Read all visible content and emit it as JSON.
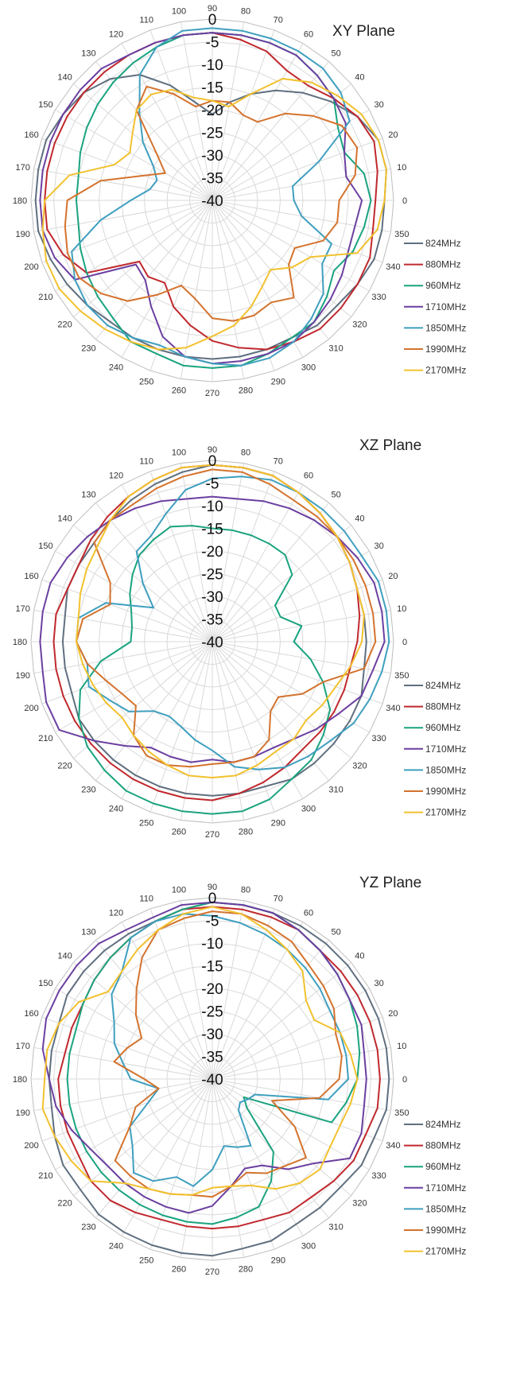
{
  "chart_data": [
    {
      "type": "polar-line",
      "title": "XY Plane",
      "r_ticks": [
        "0",
        "-5",
        "-10",
        "-15",
        "-20",
        "-25",
        "-30",
        "-35",
        "-40"
      ],
      "r_range": [
        -40,
        0
      ],
      "angle_ticks": [
        "0",
        "10",
        "20",
        "30",
        "40",
        "50",
        "60",
        "70",
        "80",
        "90",
        "100",
        "110",
        "120",
        "130",
        "140",
        "150",
        "160",
        "170",
        "180",
        "190",
        "200",
        "210",
        "220",
        "230",
        "240",
        "250",
        "260",
        "270",
        "280",
        "290",
        "300",
        "310",
        "320",
        "330",
        "340",
        "350"
      ],
      "angles": [
        0,
        10,
        20,
        30,
        40,
        50,
        60,
        70,
        80,
        90,
        100,
        110,
        120,
        130,
        140,
        150,
        160,
        170,
        180,
        190,
        200,
        210,
        220,
        230,
        240,
        250,
        260,
        270,
        280,
        290,
        300,
        310,
        320,
        330,
        340,
        350
      ],
      "legend_position": "right",
      "grid": true,
      "series": [
        {
          "name": "824MHz",
          "color": "#5f6f7f",
          "values": [
            -2,
            -1,
            -1,
            -3,
            -6,
            -9,
            -12,
            -15,
            -18,
            -21,
            -18,
            -13,
            -8,
            -5,
            -3,
            -2,
            -1,
            -1,
            -1,
            -1,
            -2,
            -3,
            -4,
            -5,
            -5,
            -5,
            -5,
            -5,
            -5,
            -5,
            -5,
            -4,
            -4,
            -3,
            -2,
            -2
          ]
        },
        {
          "name": "880MHz",
          "color": "#c0282d",
          "values": [
            -4,
            -3,
            -2,
            -3,
            -5,
            -7,
            -7,
            -5,
            -4,
            -3,
            -3,
            -3,
            -3,
            -3,
            -3,
            -3,
            -3,
            -3,
            -3,
            -3,
            -5,
            -8,
            -19,
            -18,
            -19,
            -15,
            -12,
            -9,
            -7,
            -5,
            -4,
            -3,
            -3,
            -3,
            -3,
            -4
          ]
        },
        {
          "name": "960MHz",
          "color": "#1aa37f",
          "values": [
            -5,
            -6,
            -9,
            -8,
            -5,
            -4,
            -3,
            -3,
            -3,
            -3,
            -3,
            -4,
            -5,
            -6,
            -7,
            -8,
            -9,
            -10,
            -10,
            -10,
            -9,
            -8,
            -7,
            -6,
            -4,
            -4,
            -3,
            -3,
            -3,
            -4,
            -5,
            -5,
            -7,
            -9,
            -7,
            -6
          ]
        },
        {
          "name": "1710MHz",
          "color": "#6b3fa0",
          "values": [
            -7,
            -10,
            -9,
            -6,
            -5,
            -4,
            -3,
            -3,
            -3,
            -3,
            -3,
            -3,
            -3,
            -2,
            -2,
            -2,
            -2,
            -2,
            -2,
            -2,
            -3,
            -5,
            -18,
            -17,
            -13,
            -8,
            -5,
            -4,
            -4,
            -4,
            -4,
            -5,
            -6,
            -7,
            -8,
            -8
          ]
        },
        {
          "name": "1850MHz",
          "color": "#3f9fbf",
          "values": [
            -22,
            -22,
            -15,
            -5,
            -3,
            -2,
            -2,
            -2,
            -2,
            -2,
            -2,
            -4,
            -8,
            -15,
            -20,
            -25,
            -27,
            -26,
            -22,
            -15,
            -7,
            -5,
            -4,
            -4,
            -5,
            -6,
            -5,
            -4,
            -3,
            -3,
            -4,
            -6,
            -8,
            -12,
            -12,
            -20
          ]
        },
        {
          "name": "1990MHz",
          "color": "#d4732e",
          "values": [
            -12,
            -8,
            -6,
            -7,
            -11,
            -15,
            -20,
            -20,
            -18,
            -18,
            -19,
            -15,
            -11,
            -14,
            -24,
            -28,
            -24,
            -15,
            -8,
            -7,
            -6,
            -6,
            -8,
            -11,
            -16,
            -20,
            -18,
            -14,
            -13,
            -13,
            -14,
            -12,
            -18,
            -19,
            -14,
            -12
          ]
        },
        {
          "name": "2170MHz",
          "color": "#f2c12e",
          "values": [
            -2,
            -1,
            -1,
            -2,
            -4,
            -6,
            -9,
            -15,
            -19,
            -18,
            -17,
            -14,
            -13,
            -14,
            -17,
            -19,
            -17,
            -8,
            -3,
            -2,
            -1,
            -1,
            -2,
            -3,
            -4,
            -5,
            -7,
            -10,
            -12,
            -15,
            -18,
            -20,
            -17,
            -15,
            -6,
            -3
          ]
        }
      ]
    },
    {
      "type": "polar-line",
      "title": "XZ Plane",
      "r_ticks": [
        "0",
        "-5",
        "-10",
        "-15",
        "-20",
        "-25",
        "-30",
        "-35",
        "-40"
      ],
      "r_range": [
        -40,
        0
      ],
      "angle_ticks": [
        "0",
        "10",
        "20",
        "30",
        "40",
        "50",
        "60",
        "70",
        "80",
        "90",
        "100",
        "110",
        "120",
        "130",
        "140",
        "150",
        "160",
        "170",
        "180",
        "190",
        "200",
        "210",
        "220",
        "230",
        "240",
        "250",
        "260",
        "270",
        "280",
        "290",
        "300",
        "310",
        "320",
        "330",
        "340",
        "350"
      ],
      "angles": [
        0,
        10,
        20,
        30,
        40,
        50,
        60,
        70,
        80,
        90,
        100,
        110,
        120,
        130,
        140,
        150,
        160,
        170,
        180,
        190,
        200,
        210,
        220,
        230,
        240,
        250,
        260,
        270,
        280,
        290,
        300,
        310,
        320,
        330,
        340,
        350
      ],
      "legend_position": "right",
      "grid": true,
      "series": [
        {
          "name": "824MHz",
          "color": "#5f6f7f",
          "values": [
            -6,
            -6,
            -6,
            -5,
            -4,
            -3,
            -2,
            -1,
            -1,
            -1,
            -2,
            -3,
            -4,
            -5,
            -6,
            -6,
            -6,
            -7,
            -7,
            -7,
            -7,
            -6,
            -6,
            -6,
            -6,
            -6,
            -6,
            -6,
            -6,
            -6,
            -5,
            -5,
            -5,
            -5,
            -5,
            -6
          ]
        },
        {
          "name": "880MHz",
          "color": "#c0282d",
          "values": [
            -8,
            -7,
            -6,
            -5,
            -4,
            -3,
            -2,
            -1,
            -1,
            -1,
            -1,
            -2,
            -3,
            -4,
            -5,
            -6,
            -6,
            -5,
            -5,
            -5,
            -5,
            -5,
            -5,
            -5,
            -5,
            -5,
            -5,
            -5,
            -6,
            -7,
            -8,
            -9,
            -9,
            -9,
            -9,
            -9
          ]
        },
        {
          "name": "960MHz",
          "color": "#1aa37f",
          "values": [
            -22,
            -20,
            -24,
            -24,
            -17,
            -15,
            -15,
            -15,
            -15,
            -15,
            -14,
            -13,
            -14,
            -15,
            -17,
            -19,
            -21,
            -22,
            -22,
            -15,
            -9,
            -6,
            -4,
            -3,
            -2,
            -2,
            -2,
            -2,
            -2,
            -3,
            -5,
            -6,
            -8,
            -10,
            -14,
            -18
          ]
        },
        {
          "name": "1710MHz",
          "color": "#6b3fa0",
          "values": [
            -2,
            -2,
            -2,
            -3,
            -4,
            -5,
            -6,
            -7,
            -8,
            -8,
            -8,
            -7,
            -6,
            -5,
            -4,
            -3,
            -2,
            -2,
            -2,
            -2,
            -1,
            -1,
            -6,
            -10,
            -13,
            -13,
            -13,
            -14,
            -13,
            -13,
            -13,
            -12,
            -10,
            -8,
            -5,
            -4
          ]
        },
        {
          "name": "1850MHz",
          "color": "#3f9fbf",
          "values": [
            -1,
            -1,
            -1,
            -2,
            -2,
            -2,
            -2,
            -2,
            -3,
            -4,
            -6,
            -10,
            -13,
            -14,
            -20,
            -25,
            -15,
            -10,
            -10,
            -12,
            -11,
            -14,
            -16,
            -20,
            -21,
            -20,
            -18,
            -16,
            -12,
            -10,
            -8,
            -7,
            -6,
            -4,
            -3,
            -2
          ]
        },
        {
          "name": "1990MHz",
          "color": "#d4732e",
          "values": [
            -4,
            -4,
            -4,
            -4,
            -4,
            -4,
            -4,
            -3,
            -2,
            -2,
            -3,
            -4,
            -5,
            -5,
            -6,
            -14,
            -16,
            -11,
            -10,
            -12,
            -15,
            -17,
            -18,
            -13,
            -11,
            -11,
            -12,
            -13,
            -13,
            -13,
            -15,
            -20,
            -21,
            -17,
            -14,
            -6
          ]
        },
        {
          "name": "2170MHz",
          "color": "#f2c12e",
          "values": [
            -7,
            -6,
            -6,
            -5,
            -4,
            -3,
            -2,
            -1,
            -1,
            -1,
            -1,
            -2,
            -3,
            -5,
            -7,
            -8,
            -9,
            -10,
            -10,
            -11,
            -12,
            -13,
            -14,
            -13,
            -12,
            -11,
            -10,
            -10,
            -10,
            -11,
            -12,
            -12,
            -13,
            -12,
            -11,
            -9
          ]
        }
      ]
    },
    {
      "type": "polar-line",
      "title": "YZ Plane",
      "r_ticks": [
        "0",
        "-5",
        "-10",
        "-15",
        "-20",
        "-25",
        "-30",
        "-35",
        "-40"
      ],
      "r_range": [
        -40,
        0
      ],
      "angle_ticks": [
        "0",
        "10",
        "20",
        "30",
        "40",
        "50",
        "60",
        "70",
        "80",
        "90",
        "100",
        "110",
        "120",
        "130",
        "140",
        "150",
        "160",
        "170",
        "180",
        "190",
        "200",
        "210",
        "220",
        "230",
        "240",
        "250",
        "260",
        "270",
        "280",
        "290",
        "300",
        "310",
        "320",
        "330",
        "340",
        "350"
      ],
      "angles": [
        0,
        10,
        20,
        30,
        40,
        50,
        60,
        70,
        80,
        90,
        100,
        110,
        120,
        130,
        140,
        150,
        160,
        170,
        180,
        190,
        200,
        210,
        220,
        230,
        240,
        250,
        260,
        270,
        280,
        290,
        300,
        310,
        320,
        330,
        340,
        350
      ],
      "legend_position": "right",
      "grid": true,
      "series": [
        {
          "name": "824MHz",
          "color": "#5f6f7f",
          "values": [
            -1,
            -1,
            -1,
            -1,
            -1,
            -1,
            -1,
            -1,
            -1,
            -1,
            -2,
            -3,
            -3,
            -3,
            -3,
            -3,
            -4,
            -4,
            -4,
            -4,
            -3,
            -2,
            -2,
            -1,
            -1,
            -1,
            -1,
            -1,
            -2,
            -2,
            -3,
            -3,
            -3,
            -2,
            -2,
            -1
          ]
        },
        {
          "name": "880MHz",
          "color": "#c0282d",
          "values": [
            -3,
            -3,
            -3,
            -3,
            -3,
            -3,
            -2,
            -2,
            -2,
            -2,
            -2,
            -3,
            -4,
            -5,
            -6,
            -7,
            -7,
            -7,
            -6,
            -6,
            -6,
            -6,
            -5,
            -5,
            -6,
            -7,
            -7,
            -7,
            -7,
            -7,
            -6,
            -6,
            -5,
            -4,
            -4,
            -3
          ]
        },
        {
          "name": "960MHz",
          "color": "#1aa37f",
          "values": [
            -8,
            -7,
            -6,
            -5,
            -4,
            -3,
            -2,
            -1,
            -1,
            -1,
            -2,
            -3,
            -4,
            -5,
            -6,
            -7,
            -8,
            -8,
            -8,
            -8,
            -8,
            -8,
            -8,
            -8,
            -8,
            -8,
            -8,
            -8,
            -9,
            -10,
            -14,
            -19,
            -30,
            -32,
            -12,
            -10
          ]
        },
        {
          "name": "1710MHz",
          "color": "#6b3fa0",
          "values": [
            -6,
            -6,
            -5,
            -5,
            -4,
            -3,
            -2,
            -1,
            -1,
            -1,
            -1,
            -2,
            -2,
            -1,
            -1,
            -1,
            -1,
            -2,
            -4,
            -5,
            -7,
            -9,
            -10,
            -10,
            -10,
            -10,
            -10,
            -12,
            -16,
            -19,
            -18,
            -14,
            -11,
            -5,
            -5,
            -6
          ]
        },
        {
          "name": "1850MHz",
          "color": "#3f9fbf",
          "values": [
            -10,
            -10,
            -10,
            -10,
            -9,
            -8,
            -7,
            -6,
            -5,
            -4,
            -3,
            -3,
            -4,
            -9,
            -11,
            -15,
            -17,
            -20,
            -22,
            -28,
            -25,
            -19,
            -17,
            -13,
            -14,
            -17,
            -16,
            -20,
            -25,
            -24,
            -23,
            -31,
            -32,
            -31,
            -30,
            -14
          ]
        },
        {
          "name": "1990MHz",
          "color": "#d4732e",
          "values": [
            -12,
            -11,
            -11,
            -9,
            -8,
            -7,
            -5,
            -4,
            -3,
            -3,
            -4,
            -5,
            -9,
            -14,
            -18,
            -22,
            -20,
            -18,
            -25,
            -28,
            -22,
            -19,
            -12,
            -12,
            -12,
            -13,
            -14,
            -14,
            -16,
            -18,
            -16,
            -15,
            -13,
            -19,
            -26,
            -16
          ]
        },
        {
          "name": "2170MHz",
          "color": "#f2c12e",
          "values": [
            -8,
            -9,
            -10,
            -14,
            -13,
            -9,
            -7,
            -5,
            -3,
            -2,
            -3,
            -5,
            -7,
            -9,
            -10,
            -6,
            -4,
            -3,
            -3,
            -2,
            -3,
            -4,
            -5,
            -10,
            -12,
            -13,
            -14,
            -16,
            -16,
            -15,
            -12,
            -10,
            -9,
            -10,
            -10,
            -9
          ]
        }
      ]
    }
  ]
}
